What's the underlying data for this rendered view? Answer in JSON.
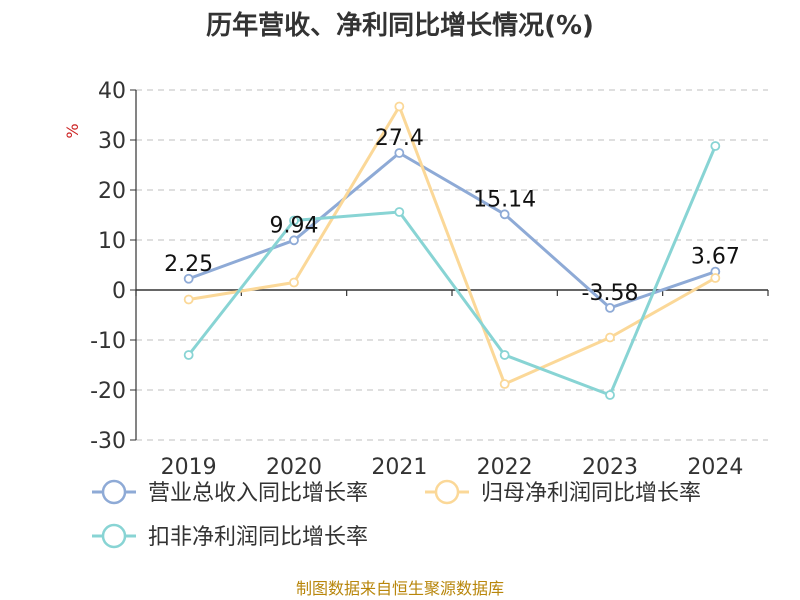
{
  "chart_data": {
    "type": "line",
    "title": "历年营收、净利同比增长情况(%)",
    "ylabel": "%",
    "xlabel": "",
    "categories": [
      "2019",
      "2020",
      "2021",
      "2022",
      "2023",
      "2024"
    ],
    "ylim": [
      -30,
      40
    ],
    "yticks": [
      "40",
      "30",
      "20",
      "10",
      "0",
      "-10",
      "-20",
      "-30"
    ],
    "grid": true,
    "legend_position": "bottom",
    "series": [
      {
        "name": "营业总收入同比增长率",
        "values": [
          2.25,
          9.94,
          27.4,
          15.14,
          -3.58,
          3.67
        ],
        "labels": [
          "2.25",
          "9.94",
          "27.4",
          "15.14",
          "-3.58",
          "3.67"
        ],
        "color": "#8eaad6"
      },
      {
        "name": "归母净利润同比增长率",
        "values": [
          -1.9,
          1.5,
          36.7,
          -18.8,
          -9.5,
          2.4
        ],
        "color": "#fbd898"
      },
      {
        "name": "扣非净利润同比增长率",
        "values": [
          -13.0,
          13.9,
          15.6,
          -13.0,
          -21.0,
          28.8
        ],
        "color": "#88d4d4"
      }
    ]
  },
  "footer": {
    "source": "制图数据来自恒生聚源数据库"
  }
}
